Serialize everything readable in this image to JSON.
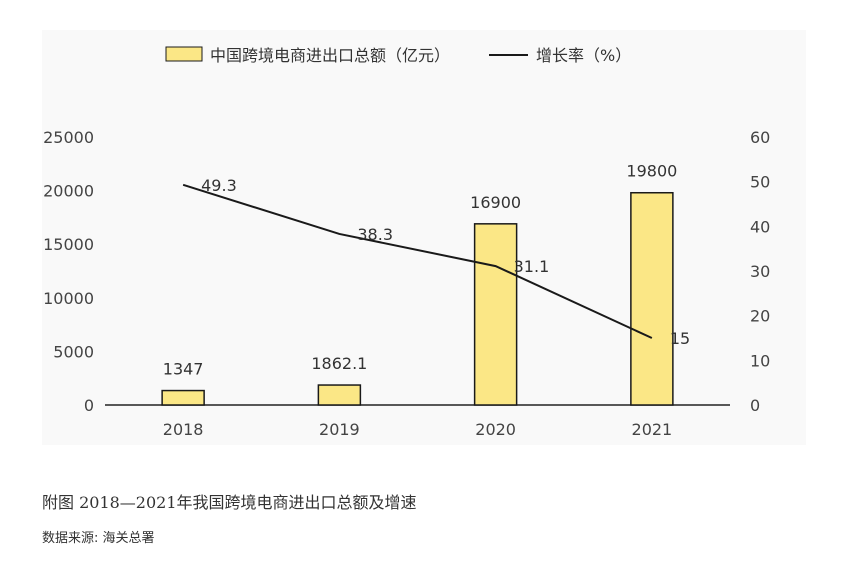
{
  "chart_data": {
    "type": "bar",
    "categories": [
      "2018",
      "2019",
      "2020",
      "2021"
    ],
    "series": [
      {
        "name": "中国跨境电商进出口总额（亿元）",
        "type": "bar",
        "axis": "left",
        "values": [
          1347,
          1862.1,
          16900,
          19800
        ],
        "labels": [
          "1347",
          "1862.1",
          "16900",
          "19800"
        ]
      },
      {
        "name": "增长率（%）",
        "type": "line",
        "axis": "right",
        "values": [
          49.3,
          38.3,
          31.1,
          15
        ],
        "labels": [
          "49.3",
          "38.3",
          "31.1",
          "15"
        ]
      }
    ],
    "left_axis": {
      "ylim": [
        0,
        25000
      ],
      "ticks": [
        "0",
        "5000",
        "10000",
        "15000",
        "20000",
        "25000"
      ]
    },
    "right_axis": {
      "ylim": [
        0,
        60
      ],
      "ticks": [
        "0",
        "10",
        "20",
        "30",
        "40",
        "50",
        "60"
      ]
    },
    "legend": "top",
    "grid": false,
    "colors": {
      "bar_fill": "#fbe786",
      "bar_stroke": "#1a1a1a",
      "line": "#1a1a1a",
      "axis": "#222222",
      "tick_text": "#444444"
    }
  },
  "caption": {
    "title": "附图 2018—2021年我国跨境电商进出口总额及增速",
    "source": "数据来源: 海关总署"
  }
}
